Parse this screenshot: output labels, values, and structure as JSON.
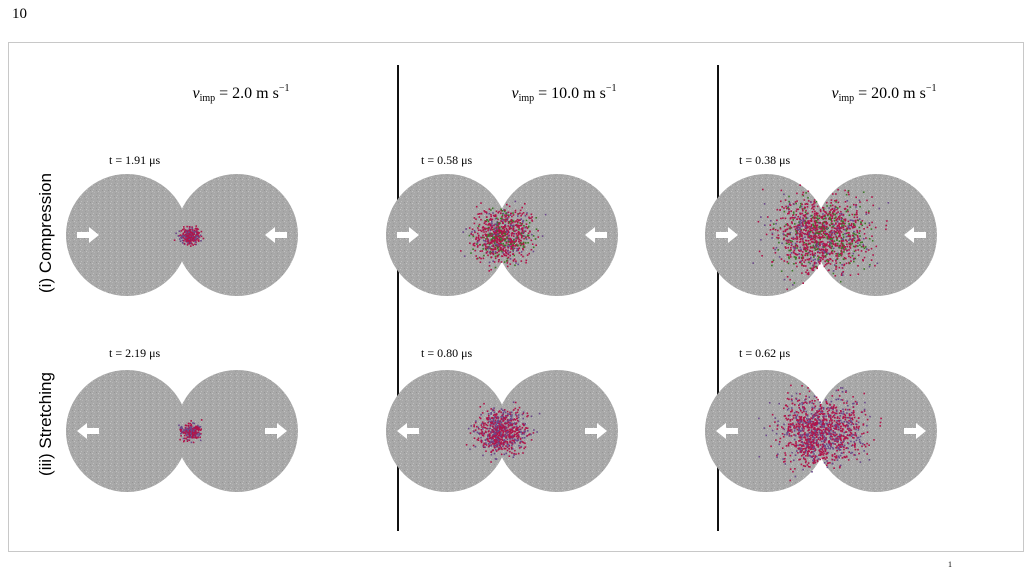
{
  "page_number": "10",
  "columns": [
    {
      "prefix": "v",
      "sub": "imp",
      "value": " = 2.0  m s",
      "sup": "−1"
    },
    {
      "prefix": "v",
      "sub": "imp",
      "value": " = 10.0  m s",
      "sup": "−1"
    },
    {
      "prefix": "v",
      "sub": "imp",
      "value": " = 20.0  m s",
      "sup": "−1"
    }
  ],
  "rows": [
    {
      "label": "(i) Compression",
      "arrow_direction": "inward"
    },
    {
      "label": "(iii) Stretching",
      "arrow_direction": "outward"
    }
  ],
  "panels": [
    {
      "row": 0,
      "col": 0,
      "time": "t = 1.91 μs",
      "damage": 0.08
    },
    {
      "row": 0,
      "col": 1,
      "time": "t = 0.58 μs",
      "damage": 0.55
    },
    {
      "row": 0,
      "col": 2,
      "time": "t = 0.38 μs",
      "damage": 0.95
    },
    {
      "row": 1,
      "col": 0,
      "time": "t = 2.19 μs",
      "damage": 0.06
    },
    {
      "row": 1,
      "col": 1,
      "time": "t = 0.80 μs",
      "damage": 0.45
    },
    {
      "row": 1,
      "col": 2,
      "time": "t = 0.62 μs",
      "damage": 0.85
    }
  ],
  "footer_fragment": "1",
  "colors": {
    "particle_gray": "#a8a8a8",
    "damage_red": "#b0154a",
    "damage_green": "#3d7a2a",
    "damage_purple": "#6b4a8a",
    "arrow": "#ffffff",
    "divider": "#111111",
    "frame_border": "#c8c8c8"
  }
}
